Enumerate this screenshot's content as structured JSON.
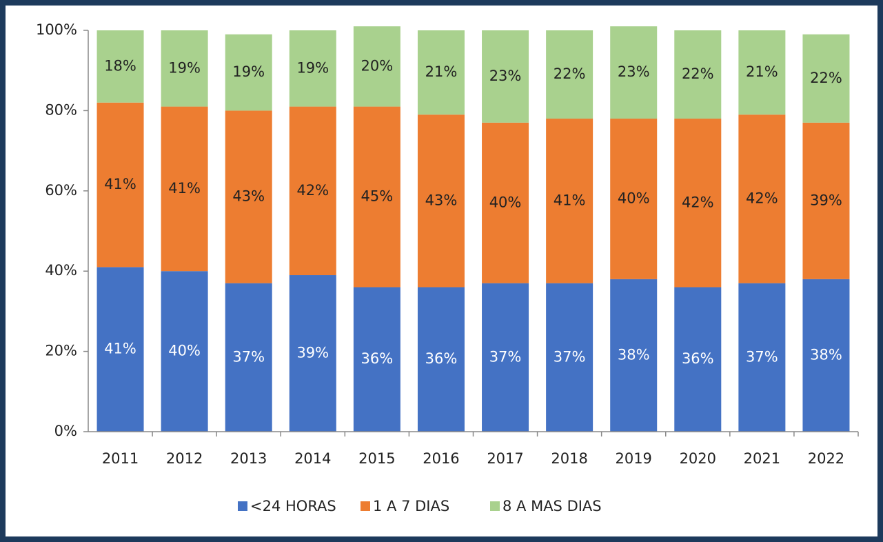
{
  "chart_data": {
    "type": "stacked_bar",
    "categories": [
      "2011",
      "2012",
      "2013",
      "2014",
      "2015",
      "2016",
      "2017",
      "2018",
      "2019",
      "2020",
      "2021",
      "2022"
    ],
    "series": [
      {
        "name": "<24 HORAS",
        "color": "#4472c4",
        "label_color": "#ffffff",
        "values": [
          41,
          40,
          37,
          39,
          36,
          36,
          37,
          37,
          38,
          36,
          37,
          38
        ],
        "value_labels": [
          "41%",
          "40%",
          "37%",
          "39%",
          "36%",
          "36%",
          "37%",
          "37%",
          "38%",
          "36%",
          "37%",
          "38%"
        ]
      },
      {
        "name": "1 A 7 DIAS",
        "color": "#ed7d31",
        "label_color": "#222222",
        "values": [
          41,
          41,
          43,
          42,
          45,
          43,
          40,
          41,
          40,
          42,
          42,
          39
        ],
        "value_labels": [
          "41%",
          "41%",
          "43%",
          "42%",
          "45%",
          "43%",
          "40%",
          "41%",
          "40%",
          "42%",
          "42%",
          "39%"
        ]
      },
      {
        "name": "8 A MAS DIAS",
        "color": "#a9d18e",
        "label_color": "#222222",
        "values": [
          18,
          19,
          19,
          19,
          20,
          21,
          23,
          22,
          23,
          22,
          21,
          22
        ],
        "value_labels": [
          "18%",
          "19%",
          "19%",
          "19%",
          "20%",
          "21%",
          "23%",
          "22%",
          "23%",
          "22%",
          "21%",
          "22%"
        ]
      }
    ],
    "ylim": [
      0,
      100
    ],
    "yticks": [
      {
        "value": 0,
        "label": "0%"
      },
      {
        "value": 20,
        "label": "20%"
      },
      {
        "value": 40,
        "label": "40%"
      },
      {
        "value": 60,
        "label": "60%"
      },
      {
        "value": 80,
        "label": "80%"
      },
      {
        "value": 100,
        "label": "100%"
      }
    ],
    "legend": "bottom"
  }
}
